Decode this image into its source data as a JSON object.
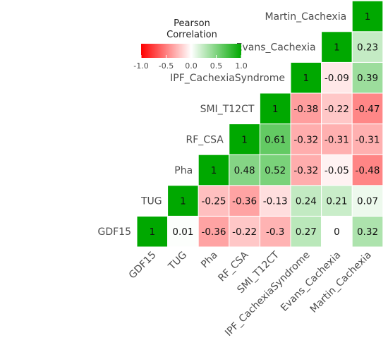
{
  "chart_data": {
    "type": "heatmap",
    "legend": {
      "title_line1": "Pearson",
      "title_line2": "Correlation",
      "ticks": [
        "-1.0",
        "-0.5",
        "0.0",
        "0.5",
        "1.0"
      ],
      "tick_values": [
        -1,
        -0.5,
        0,
        0.5,
        1
      ],
      "placement": "top-left"
    },
    "colors": {
      "negative": "#ff0000",
      "zero": "#ffffff",
      "positive": "#00a800"
    },
    "variables": [
      "GDF15",
      "TUG",
      "Pha",
      "RF_CSA",
      "SMI_T12CT",
      "IPF_CachexiaSyndrome",
      "Evans_Cachexia",
      "Martin_Cachexia"
    ],
    "matrix": [
      [
        1,
        0.01,
        -0.36,
        -0.22,
        -0.3,
        0.27,
        0,
        0.32
      ],
      [
        0.01,
        1,
        -0.25,
        -0.36,
        -0.13,
        0.24,
        0.21,
        0.07
      ],
      [
        -0.36,
        -0.25,
        1,
        0.48,
        0.52,
        -0.32,
        -0.05,
        -0.48
      ],
      [
        -0.22,
        -0.36,
        0.48,
        1,
        0.61,
        -0.32,
        -0.31,
        -0.31
      ],
      [
        -0.3,
        -0.13,
        0.52,
        0.61,
        1,
        -0.38,
        -0.22,
        -0.47
      ],
      [
        0.27,
        0.24,
        -0.32,
        -0.32,
        -0.38,
        1,
        -0.09,
        0.39
      ],
      [
        0,
        0.21,
        -0.05,
        -0.31,
        -0.22,
        -0.09,
        1,
        0.23
      ],
      [
        0.32,
        0.07,
        -0.48,
        -0.31,
        -0.47,
        0.39,
        0.23,
        1
      ]
    ],
    "grid": false
  }
}
